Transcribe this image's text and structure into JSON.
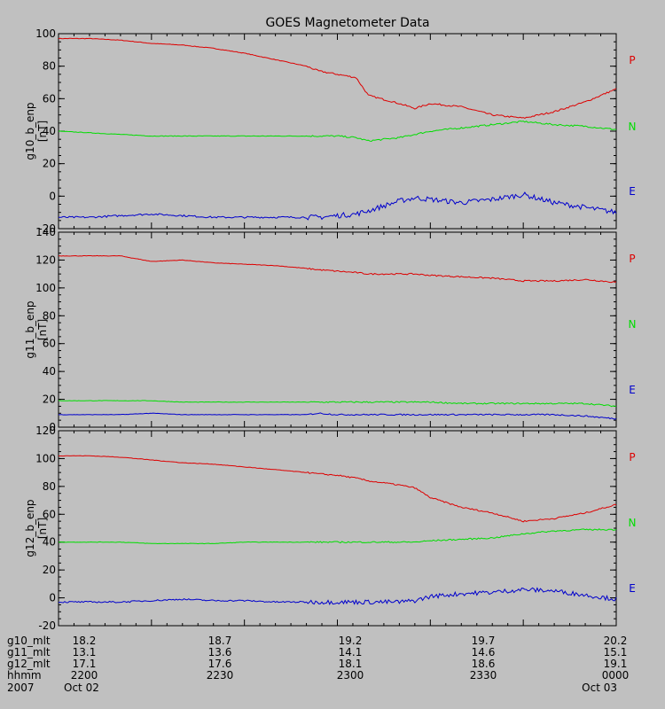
{
  "chart_data": {
    "type": "line",
    "title": "GOES Magnetometer Data",
    "x_range": [
      "2200",
      "0000"
    ],
    "grid": false,
    "legend_placement": "right",
    "series_colors": {
      "P": "#dd0000",
      "N": "#00dd00",
      "E": "#0000cc"
    },
    "x_minutes": [
      0,
      10,
      20,
      30,
      40,
      50,
      60,
      70,
      80,
      84,
      90,
      96,
      100,
      110,
      115,
      120,
      130,
      140,
      150,
      160,
      170,
      180
    ],
    "panels": [
      {
        "ylabel": "g10_b_enp",
        "unit": "[nT]",
        "ylim": [
          -20,
          100
        ],
        "yticks": [
          "100",
          "80",
          "60",
          "40",
          "20",
          "0",
          "-20"
        ],
        "legend": [
          "P",
          "N",
          "E"
        ],
        "series": [
          {
            "name": "P",
            "values": [
              97,
              97,
              96,
              94,
              93,
              91,
              88,
              84,
              80,
              77,
              75,
              73,
              62,
              57,
              54,
              57,
              55,
              50,
              48,
              52,
              58,
              66
            ]
          },
          {
            "name": "N",
            "values": [
              40,
              39,
              38,
              37,
              37,
              37,
              37,
              37,
              37,
              37,
              37,
              36,
              34,
              36,
              38,
              40,
              42,
              44,
              46,
              44,
              43,
              41
            ]
          },
          {
            "name": "E",
            "values": [
              -13,
              -13,
              -12,
              -11,
              -12,
              -13,
              -13,
              -13,
              -13,
              -13,
              -12,
              -11,
              -9,
              -3,
              -1,
              -2,
              -4,
              -2,
              1,
              -4,
              -7,
              -10
            ]
          }
        ]
      },
      {
        "ylabel": "g11_b_enp",
        "unit": "[nT]",
        "ylim": [
          0,
          140
        ],
        "yticks": [
          "140",
          "120",
          "100",
          "80",
          "60",
          "40",
          "20",
          "0"
        ],
        "legend": [
          "P",
          "N",
          "E"
        ],
        "series": [
          {
            "name": "P",
            "values": [
              123,
              123,
              123,
              119,
              120,
              118,
              117,
              116,
              114,
              113,
              112,
              111,
              110,
              110,
              110,
              109,
              108,
              107,
              105,
              105,
              106,
              104
            ]
          },
          {
            "name": "N",
            "values": [
              19,
              19,
              19,
              19,
              18,
              18,
              18,
              18,
              18,
              18,
              18,
              18,
              18,
              18,
              18,
              18,
              17,
              17,
              17,
              17,
              17,
              15
            ]
          },
          {
            "name": "E",
            "values": [
              9,
              9,
              9,
              10,
              9,
              9,
              9,
              9,
              9,
              10,
              9,
              9,
              9,
              9,
              9,
              9,
              9,
              9,
              9,
              9,
              8,
              6
            ]
          }
        ]
      },
      {
        "ylabel": "g12_b_enp",
        "unit": "[nT]",
        "ylim": [
          -20,
          120
        ],
        "yticks": [
          "120",
          "100",
          "80",
          "60",
          "40",
          "20",
          "0",
          "-20"
        ],
        "legend": [
          "P",
          "N",
          "E"
        ],
        "series": [
          {
            "name": "P",
            "values": [
              102,
              102,
              101,
              99,
              97,
              96,
              94,
              92,
              90,
              89,
              88,
              86,
              84,
              81,
              79,
              72,
              65,
              61,
              55,
              57,
              61,
              67
            ]
          },
          {
            "name": "N",
            "values": [
              40,
              40,
              40,
              39,
              39,
              39,
              40,
              40,
              40,
              40,
              40,
              40,
              40,
              40,
              40,
              41,
              42,
              43,
              46,
              48,
              49,
              49
            ]
          },
          {
            "name": "E",
            "values": [
              -3,
              -3,
              -3,
              -2,
              -1,
              -2,
              -2,
              -3,
              -3,
              -3,
              -3,
              -3,
              -3,
              -3,
              -2,
              1,
              3,
              4,
              6,
              5,
              2,
              -1
            ]
          }
        ]
      }
    ],
    "ephemeris": {
      "labels": [
        "g10_mlt",
        "g11_mlt",
        "g12_mlt",
        "hhmm",
        "2007"
      ],
      "columns": [
        [
          "18.2",
          "13.1",
          "17.1",
          "2200",
          "Oct 02"
        ],
        [
          "18.7",
          "13.6",
          "17.6",
          "2230",
          ""
        ],
        [
          "19.2",
          "14.1",
          "18.1",
          "2300",
          ""
        ],
        [
          "19.7",
          "14.6",
          "18.6",
          "2330",
          ""
        ],
        [
          "20.2",
          "15.1",
          "19.1",
          "0000",
          "Oct 03"
        ]
      ]
    }
  }
}
